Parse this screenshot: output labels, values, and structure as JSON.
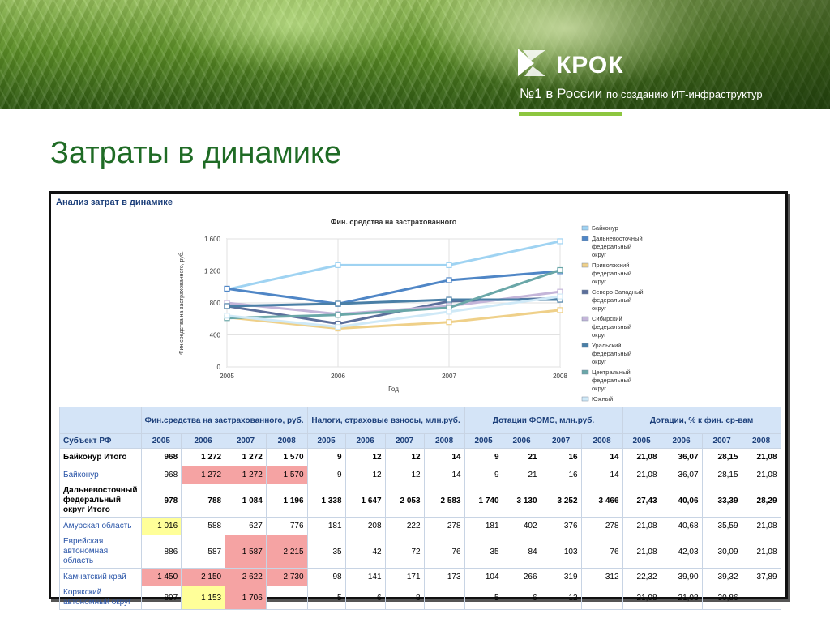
{
  "header": {
    "brand": "КРОК",
    "tagline_main": "№1 в России",
    "tagline_rest": "по созданию ИТ-инфраструктур"
  },
  "slide_title": "Затраты в динамике",
  "panel_title": "Анализ затрат в динамике",
  "chart_data": {
    "type": "line",
    "title": "Фин. средства на застрахованного",
    "xlabel": "Год",
    "ylabel": "Фин.средства на застрахованного, руб.",
    "x": [
      2005,
      2006,
      2007,
      2008
    ],
    "ylim": [
      0,
      1600
    ],
    "yticks": [
      "0",
      "400",
      "800",
      "1 200",
      "1 600"
    ],
    "xticks": [
      "2005",
      "2006",
      "2007",
      "2008"
    ],
    "legend_position": "right",
    "series": [
      {
        "name": "Байконур",
        "color": "#9fd3f2",
        "values": [
          968,
          1272,
          1272,
          1570
        ]
      },
      {
        "name": "Дальневосточный федеральный округ",
        "color": "#4f86c6",
        "values": [
          978,
          788,
          1084,
          1196
        ]
      },
      {
        "name": "Приволжский федеральный округ",
        "color": "#efd089",
        "values": [
          620,
          480,
          560,
          710
        ]
      },
      {
        "name": "Северо-Западный федеральный округ",
        "color": "#5c6f9b",
        "values": [
          760,
          540,
          820,
          860
        ]
      },
      {
        "name": "Сибирский федеральный округ",
        "color": "#c4b5d9",
        "values": [
          800,
          660,
          760,
          940
        ]
      },
      {
        "name": "Уральский федеральный округ",
        "color": "#4a7fa6",
        "values": [
          760,
          790,
          840,
          840
        ]
      },
      {
        "name": "Центральный федеральный округ",
        "color": "#6aa7a8",
        "values": [
          610,
          650,
          740,
          1210
        ]
      },
      {
        "name": "Южный федеральный округ",
        "color": "#cfe9f7",
        "values": [
          640,
          500,
          690,
          880
        ]
      }
    ]
  },
  "table": {
    "corner": "Субъект РФ",
    "groups": [
      "Фин.средства на застрахованного, руб.",
      "Налоги, страховые взносы, млн.руб.",
      "Дотации ФОМС, млн.руб.",
      "Дотации, % к фин. ср-вам"
    ],
    "years": [
      "2005",
      "2006",
      "2007",
      "2008"
    ],
    "rows": [
      {
        "name": "Байконур Итого",
        "kind": "total",
        "cells": [
          "968",
          "1 272",
          "1 272",
          "1 570",
          "9",
          "12",
          "12",
          "14",
          "9",
          "21",
          "16",
          "14",
          "21,08",
          "36,07",
          "28,15",
          "21,08"
        ],
        "hl": {}
      },
      {
        "name": "Байконур",
        "kind": "item",
        "cells": [
          "968",
          "1 272",
          "1 272",
          "1 570",
          "9",
          "12",
          "12",
          "14",
          "9",
          "21",
          "16",
          "14",
          "21,08",
          "36,07",
          "28,15",
          "21,08"
        ],
        "hl": {
          "1": "r",
          "2": "r",
          "3": "r"
        }
      },
      {
        "name": "Дальневосточный федеральный округ Итого",
        "kind": "total",
        "cells": [
          "978",
          "788",
          "1 084",
          "1 196",
          "1 338",
          "1 647",
          "2 053",
          "2 583",
          "1 740",
          "3 130",
          "3 252",
          "3 466",
          "27,43",
          "40,06",
          "33,39",
          "28,29"
        ],
        "hl": {}
      },
      {
        "name": "Амурская область",
        "kind": "item",
        "cells": [
          "1 016",
          "588",
          "627",
          "776",
          "181",
          "208",
          "222",
          "278",
          "181",
          "402",
          "376",
          "278",
          "21,08",
          "40,68",
          "35,59",
          "21,08"
        ],
        "hl": {
          "0": "y"
        }
      },
      {
        "name": "Еврейская автономная область",
        "kind": "item",
        "cells": [
          "886",
          "587",
          "1 587",
          "2 215",
          "35",
          "42",
          "72",
          "76",
          "35",
          "84",
          "103",
          "76",
          "21,08",
          "42,03",
          "30,09",
          "21,08"
        ],
        "hl": {
          "2": "r",
          "3": "r"
        }
      },
      {
        "name": "Камчатский край",
        "kind": "item",
        "cells": [
          "1 450",
          "2 150",
          "2 622",
          "2 730",
          "98",
          "141",
          "171",
          "173",
          "104",
          "266",
          "319",
          "312",
          "22,32",
          "39,90",
          "39,32",
          "37,89"
        ],
        "hl": {
          "0": "r",
          "1": "r",
          "2": "r",
          "3": "r"
        }
      },
      {
        "name": "Корякский автономный округ",
        "kind": "item",
        "cells": [
          "897",
          "1 153",
          "1 706",
          "",
          "5",
          "6",
          "8",
          "",
          "5",
          "6",
          "12",
          "",
          "21,08",
          "21,08",
          "30,86",
          ""
        ],
        "hl": {
          "1": "y",
          "2": "r"
        }
      }
    ]
  }
}
